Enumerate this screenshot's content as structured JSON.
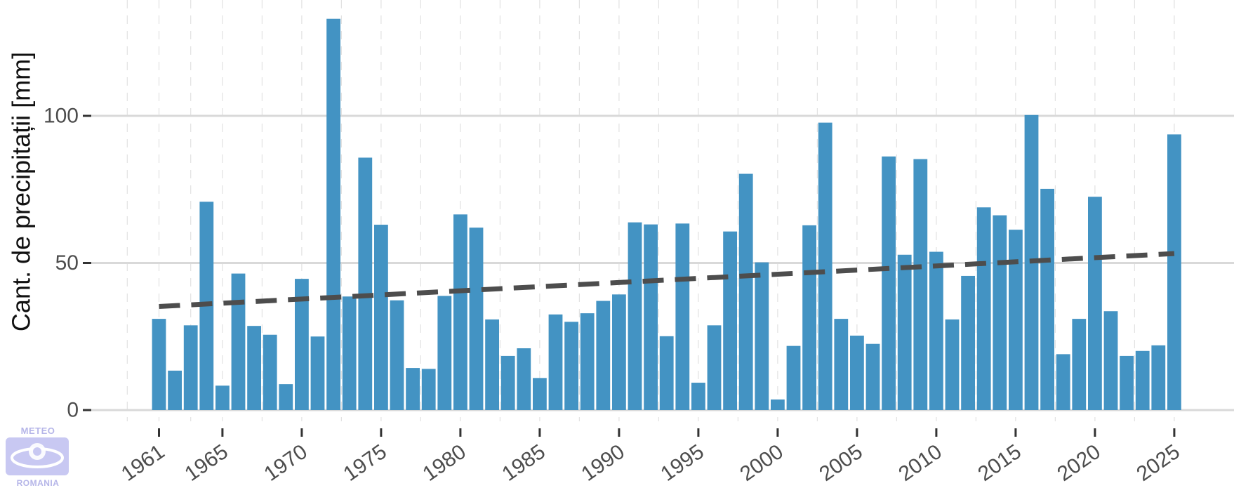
{
  "chart_data": {
    "type": "bar",
    "ylabel": "Cant. de precipitații [mm]",
    "xlabel": "",
    "ylim": [
      0,
      135
    ],
    "y_ticks": [
      0,
      50,
      100
    ],
    "x_ticks": [
      1961,
      1965,
      1970,
      1975,
      1980,
      1985,
      1990,
      1995,
      2000,
      2005,
      2010,
      2015,
      2020,
      2025
    ],
    "grid": "horizontal major lines, dashed vertical lines",
    "bar_color": "#4393c3",
    "trend_color": "#4d4d4d",
    "categories": [
      1961,
      1962,
      1963,
      1964,
      1965,
      1966,
      1967,
      1968,
      1969,
      1970,
      1971,
      1972,
      1973,
      1974,
      1975,
      1976,
      1977,
      1978,
      1979,
      1980,
      1981,
      1982,
      1983,
      1984,
      1985,
      1986,
      1987,
      1988,
      1989,
      1990,
      1991,
      1992,
      1993,
      1994,
      1995,
      1996,
      1997,
      1998,
      1999,
      2000,
      2001,
      2002,
      2003,
      2004,
      2005,
      2006,
      2007,
      2008,
      2009,
      2010,
      2011,
      2012,
      2013,
      2014,
      2015,
      2016,
      2017,
      2018,
      2019,
      2020,
      2021,
      2022,
      2023,
      2024,
      2025
    ],
    "values": [
      31,
      13.4,
      28.8,
      70.8,
      8.3,
      46.4,
      28.6,
      25.6,
      8.8,
      44.6,
      25,
      133,
      38.6,
      85.8,
      63,
      37.3,
      14.3,
      14,
      38.8,
      66.5,
      62,
      30.8,
      18.4,
      21,
      10.9,
      32.5,
      30,
      32.9,
      37.1,
      39.3,
      63.8,
      63.1,
      25.1,
      63.4,
      9.3,
      28.8,
      60.7,
      80.3,
      50.2,
      3.6,
      21.8,
      62.8,
      97.7,
      31,
      25.3,
      22.5,
      86.2,
      52.8,
      85.3,
      53.8,
      30.8,
      45.6,
      68.9,
      66.2,
      61.3,
      100.3,
      75.2,
      19,
      31,
      72.5,
      33.6,
      18.4,
      20.1,
      22,
      93.7
    ],
    "trend": {
      "x": [
        1961,
        2025
      ],
      "y": [
        35.2,
        53.2
      ]
    },
    "logo": {
      "top_text": "METEO",
      "bottom_text": "ROMANIA"
    }
  }
}
